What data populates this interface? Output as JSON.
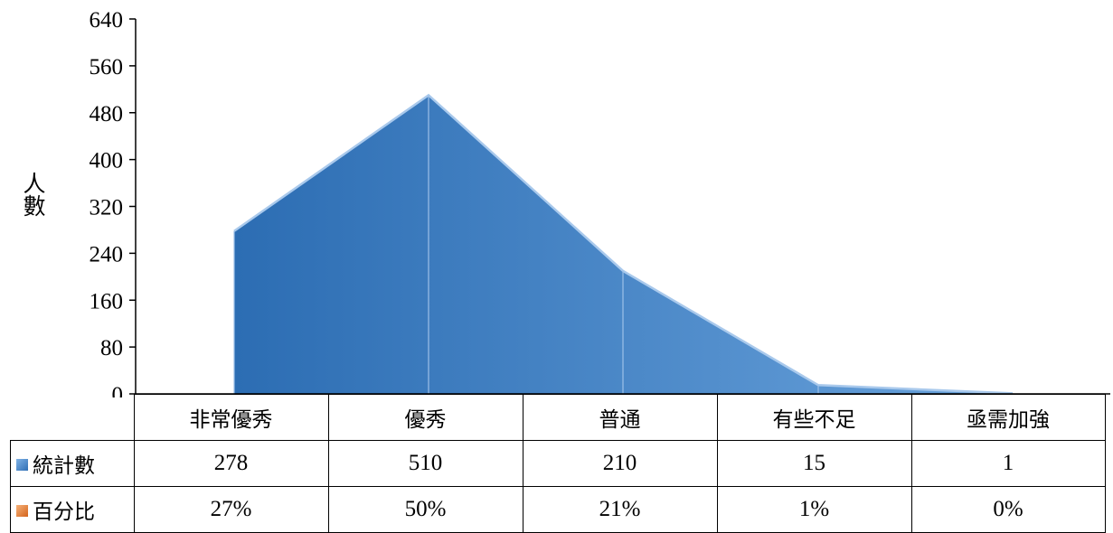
{
  "chart_data": {
    "type": "area",
    "categories": [
      "非常優秀",
      "優秀",
      "普通",
      "有些不足",
      "亟需加強"
    ],
    "series": [
      {
        "name": "統計數",
        "values": [
          278,
          510,
          210,
          15,
          1
        ],
        "color": "#3a7abf"
      },
      {
        "name": "百分比",
        "values": [
          "27%",
          "50%",
          "21%",
          "1%",
          "0%"
        ],
        "color": "#e07a2e"
      }
    ],
    "ylabel": "人數",
    "xlabel": "",
    "ylim": [
      0,
      640
    ],
    "yticks": [
      "0",
      "80",
      "160",
      "240",
      "320",
      "400",
      "480",
      "560",
      "640"
    ],
    "data_table": true,
    "legend": "data-table-row-headers"
  }
}
